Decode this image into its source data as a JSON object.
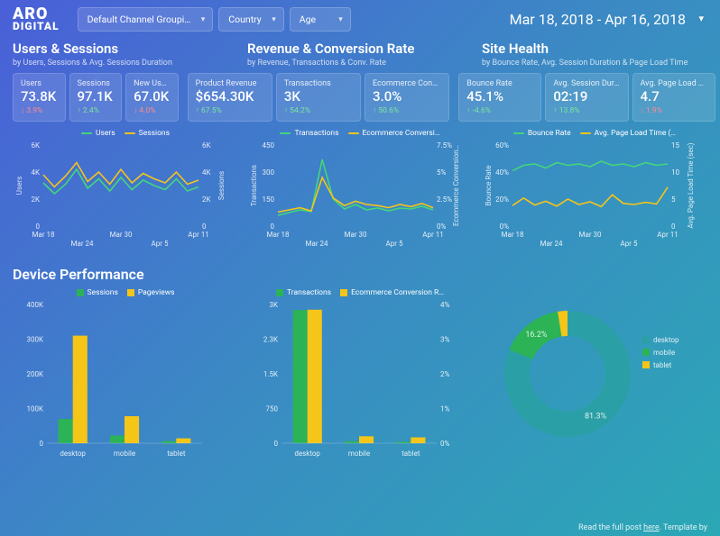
{
  "logo": {
    "line1": "ARO",
    "line2": "DIGITAL"
  },
  "filters": {
    "channel": "Default Channel Groupi…",
    "country": "Country",
    "age": "Age"
  },
  "date_range": "Mar 18, 2018 - Apr 16, 2018",
  "sections": [
    {
      "title": "Users & Sessions",
      "sub": "by Users, Sessions & Avg. Sessions Duration"
    },
    {
      "title": "Revenue & Conversion Rate",
      "sub": "by Revenue, Transactions & Conv. Rate"
    },
    {
      "title": "Site Health",
      "sub": "by Bounce Rate, Avg. Session Duration & Page Load Time"
    }
  ],
  "kpis": [
    [
      {
        "label": "Users",
        "value": "73.8K",
        "delta": "3.9%",
        "dir": "down"
      },
      {
        "label": "Sessions",
        "value": "97.1K",
        "delta": "2.4%",
        "dir": "up"
      },
      {
        "label": "New Users",
        "value": "67.0K",
        "delta": "4.0%",
        "dir": "down"
      }
    ],
    [
      {
        "label": "Product Revenue",
        "value": "$654.30K",
        "delta": "67.5%",
        "dir": "up"
      },
      {
        "label": "Transactions",
        "value": "3K",
        "delta": "54.2%",
        "dir": "up"
      },
      {
        "label": "Ecommerce Conversion R…",
        "value": "3.0%",
        "delta": "50.6%",
        "dir": "up"
      }
    ],
    [
      {
        "label": "Bounce Rate",
        "value": "45.1%",
        "delta": "-4.6%",
        "dir": "up"
      },
      {
        "label": "Avg. Session Duration",
        "value": "02:19",
        "delta": "13.8%",
        "dir": "up"
      },
      {
        "label": "Avg. Page Load Time",
        "value": "4.7",
        "delta": "1.9%",
        "dir": "down"
      }
    ]
  ],
  "line_charts": [
    {
      "legend": [
        {
          "label": "Users",
          "color": "#43d67b"
        },
        {
          "label": "Sessions",
          "color": "#f5c518"
        }
      ],
      "y_left": {
        "label": "Users",
        "ticks": [
          "0",
          "2K",
          "4K",
          "6K"
        ],
        "max": 6000
      },
      "y_right": {
        "label": "Sessions",
        "ticks": [
          "0",
          "2K",
          "4K",
          "6K"
        ],
        "max": 6000
      },
      "x_ticks": [
        "Mar 18",
        "Mar 24",
        "Mar 30",
        "Apr 5",
        "Apr 11"
      ],
      "series": [
        {
          "color": "#43d67b",
          "values": [
            3200,
            2400,
            3100,
            4200,
            2800,
            3500,
            2600,
            3600,
            2700,
            3400,
            3000,
            2700,
            3500,
            2600,
            2900
          ]
        },
        {
          "color": "#f5c518",
          "values": [
            3800,
            2900,
            3700,
            4700,
            3300,
            4000,
            3100,
            4200,
            3200,
            3900,
            3500,
            3200,
            4000,
            3100,
            3400
          ]
        }
      ]
    },
    {
      "legend": [
        {
          "label": "Transactions",
          "color": "#43d67b"
        },
        {
          "label": "Ecommerce Conversi…",
          "color": "#f5c518"
        }
      ],
      "y_left": {
        "label": "Transactions",
        "ticks": [
          "0",
          "150",
          "300",
          "450"
        ],
        "max": 450
      },
      "y_right": {
        "label": "Ecommerce Conversion…",
        "ticks": [
          "0%",
          "2.5%",
          "5%",
          "7.5%"
        ],
        "max": 7.5
      },
      "x_ticks": [
        "Mar 18",
        "Mar 24",
        "Mar 30",
        "Apr 5",
        "Apr 11"
      ],
      "series": [
        {
          "color": "#43d67b",
          "values": [
            60,
            75,
            90,
            80,
            370,
            150,
            95,
            120,
            90,
            100,
            85,
            100,
            95,
            110,
            90
          ]
        },
        {
          "color": "#f5c518",
          "values": [
            1.3,
            1.5,
            1.7,
            1.4,
            4.5,
            2.6,
            1.9,
            2.3,
            2.0,
            1.9,
            1.7,
            2.0,
            1.8,
            2.1,
            1.7
          ],
          "scale_max": 7.5
        }
      ]
    },
    {
      "legend": [
        {
          "label": "Bounce Rate",
          "color": "#43d67b"
        },
        {
          "label": "Avg. Page Load Time (…",
          "color": "#f5c518"
        }
      ],
      "y_left": {
        "label": "Bounce Rate",
        "ticks": [
          "0%",
          "20%",
          "40%",
          "60%"
        ],
        "max": 60
      },
      "y_right": {
        "label": "Avg. Page Load Time (sec)",
        "ticks": [
          "0",
          "5",
          "10",
          "15"
        ],
        "max": 15
      },
      "x_ticks": [
        "Mar 18",
        "Mar 24",
        "Mar 30",
        "Apr 5",
        "Apr 11"
      ],
      "series": [
        {
          "color": "#43d67b",
          "values": [
            41,
            45,
            46,
            43,
            47,
            45,
            46,
            44,
            48,
            45,
            46,
            44,
            47,
            45,
            46
          ]
        },
        {
          "color": "#f5c518",
          "values": [
            3.8,
            5.2,
            3.9,
            4.6,
            3.7,
            5.0,
            4.0,
            4.5,
            3.6,
            5.8,
            4.2,
            4.0,
            4.4,
            4.1,
            7.2
          ],
          "scale_max": 15
        }
      ]
    }
  ],
  "device_section_title": "Device Performance",
  "bar_charts": [
    {
      "legend": [
        {
          "label": "Sessions",
          "color": "#2bb356"
        },
        {
          "label": "Pageviews",
          "color": "#f5c518"
        }
      ],
      "categories": [
        "desktop",
        "mobile",
        "tablet"
      ],
      "y_ticks": [
        "0",
        "100K",
        "200K",
        "300K",
        "400K"
      ],
      "y_max": 400000,
      "series": [
        {
          "color": "#2bb356",
          "values": [
            70000,
            22000,
            6000
          ]
        },
        {
          "color": "#f5c518",
          "values": [
            310000,
            78000,
            14000
          ]
        }
      ]
    },
    {
      "legend": [
        {
          "label": "Transactions",
          "color": "#2bb356"
        },
        {
          "label": "Ecommerce Conversion R…",
          "color": "#f5c518"
        }
      ],
      "categories": [
        "desktop",
        "mobile",
        "tablet"
      ],
      "y_ticks": [
        "0",
        "750",
        "1.5K",
        "2.3K",
        "3K"
      ],
      "y_right_ticks": [
        "0%",
        "1%",
        "2%",
        "3%",
        "4%"
      ],
      "y_max": 3000,
      "y_right_max": 4,
      "series": [
        {
          "color": "#2bb356",
          "values": [
            2880,
            40,
            30
          ]
        },
        {
          "color": "#f5c518",
          "values": [
            2900,
            150,
            120
          ],
          "use_right": true,
          "right_values": [
            3.85,
            0.2,
            0.17
          ]
        }
      ]
    }
  ],
  "donut": {
    "legend": [
      {
        "label": "desktop",
        "color": "#2aa0a6"
      },
      {
        "label": "mobile",
        "color": "#2bb356"
      },
      {
        "label": "tablet",
        "color": "#f5c518"
      }
    ],
    "slices": [
      {
        "label": "81.3%",
        "value": 81.3,
        "color": "#2aa0a6"
      },
      {
        "label": "16.2%",
        "value": 16.2,
        "color": "#2bb356"
      },
      {
        "label": "",
        "value": 2.5,
        "color": "#f5c518"
      }
    ]
  },
  "footer": {
    "pre": "Read the full post ",
    "link": "here",
    "post": ". Template by"
  }
}
